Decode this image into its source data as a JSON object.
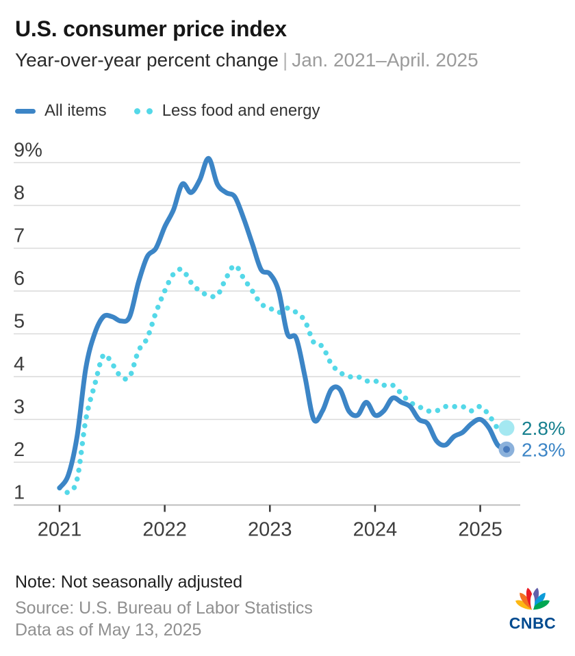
{
  "header": {
    "title": "U.S. consumer price index",
    "subtitle_main": "Year-over-year percent change",
    "subtitle_sep": "|",
    "subtitle_range": "Jan. 2021–April. 2025"
  },
  "legend": [
    {
      "label": "All items",
      "swatch": "line",
      "color": "#3C85C6"
    },
    {
      "label": "Less food and energy",
      "swatch": "dots",
      "color": "#54D8E8"
    }
  ],
  "footer": {
    "note": "Note: Not seasonally adjusted",
    "source": "Source: U.S. Bureau of Labor Statistics",
    "as_of": "Data as of May 13, 2025",
    "logo": "CNBC",
    "logo_text_color": "#014A8F",
    "logo_colors": [
      "#FDB713",
      "#F37021",
      "#EB1C24",
      "#645FAA",
      "#0D9BD8",
      "#00A651"
    ]
  },
  "colors": {
    "all_items": "#3C85C6",
    "core": "#54D8E8",
    "grid": "#D9D9D9",
    "axis": "#BDBDBD",
    "tick": "#3A3A3A",
    "tick_label": "#3D3D3D",
    "end_dot_core": "#A4E8F1",
    "end_dot_all_outer": "#8BB1DB",
    "end_dot_all_inner": "#4A7CBD",
    "end_label_core": "#17808F",
    "end_label_all": "#3C85C6"
  },
  "chart_data": {
    "type": "line",
    "title": "U.S. consumer price index",
    "xlabel": "",
    "ylabel": "Year-over-year percent change",
    "ylim": [
      1,
      9.5
    ],
    "grid": true,
    "legend_position": "top",
    "yticks": [
      {
        "label": "9%",
        "value": 9
      },
      {
        "label": "8",
        "value": 8
      },
      {
        "label": "7",
        "value": 7
      },
      {
        "label": "6",
        "value": 6
      },
      {
        "label": "5",
        "value": 5
      },
      {
        "label": "4",
        "value": 4
      },
      {
        "label": "3",
        "value": 3
      },
      {
        "label": "2",
        "value": 2
      },
      {
        "label": "1",
        "value": 1
      }
    ],
    "xticks": [
      {
        "label": "2021",
        "index": 0
      },
      {
        "label": "2022",
        "index": 12
      },
      {
        "label": "2023",
        "index": 24
      },
      {
        "label": "2024",
        "index": 36
      },
      {
        "label": "2025",
        "index": 48
      }
    ],
    "x": [
      "Jan 2021",
      "Feb 2021",
      "Mar 2021",
      "Apr 2021",
      "May 2021",
      "Jun 2021",
      "Jul 2021",
      "Aug 2021",
      "Sep 2021",
      "Oct 2021",
      "Nov 2021",
      "Dec 2021",
      "Jan 2022",
      "Feb 2022",
      "Mar 2022",
      "Apr 2022",
      "May 2022",
      "Jun 2022",
      "Jul 2022",
      "Aug 2022",
      "Sep 2022",
      "Oct 2022",
      "Nov 2022",
      "Dec 2022",
      "Jan 2023",
      "Feb 2023",
      "Mar 2023",
      "Apr 2023",
      "May 2023",
      "Jun 2023",
      "Jul 2023",
      "Aug 2023",
      "Sep 2023",
      "Oct 2023",
      "Nov 2023",
      "Dec 2023",
      "Jan 2024",
      "Feb 2024",
      "Mar 2024",
      "Apr 2024",
      "May 2024",
      "Jun 2024",
      "Jul 2024",
      "Aug 2024",
      "Sep 2024",
      "Oct 2024",
      "Nov 2024",
      "Dec 2024",
      "Jan 2025",
      "Feb 2025",
      "Mar 2025",
      "Apr 2025"
    ],
    "series": [
      {
        "name": "Less food and energy",
        "style": "dotted",
        "color": "#54D8E8",
        "end_label": "2.8%",
        "values": [
          1.4,
          1.3,
          1.6,
          3.0,
          3.8,
          4.5,
          4.3,
          4.0,
          4.0,
          4.6,
          4.9,
          5.5,
          6.0,
          6.4,
          6.5,
          6.2,
          6.0,
          5.9,
          5.9,
          6.3,
          6.6,
          6.3,
          6.0,
          5.7,
          5.6,
          5.5,
          5.6,
          5.5,
          5.3,
          4.8,
          4.7,
          4.3,
          4.1,
          4.0,
          4.0,
          3.9,
          3.9,
          3.8,
          3.8,
          3.6,
          3.4,
          3.3,
          3.2,
          3.2,
          3.3,
          3.3,
          3.3,
          3.2,
          3.3,
          3.1,
          2.8,
          2.8
        ]
      },
      {
        "name": "All items",
        "style": "solid",
        "color": "#3C85C6",
        "end_label": "2.3%",
        "values": [
          1.4,
          1.7,
          2.6,
          4.2,
          5.0,
          5.4,
          5.4,
          5.3,
          5.4,
          6.2,
          6.8,
          7.0,
          7.5,
          7.9,
          8.5,
          8.3,
          8.6,
          9.1,
          8.5,
          8.3,
          8.2,
          7.7,
          7.1,
          6.5,
          6.4,
          6.0,
          5.0,
          4.9,
          4.0,
          3.0,
          3.2,
          3.7,
          3.7,
          3.2,
          3.1,
          3.4,
          3.1,
          3.2,
          3.5,
          3.4,
          3.3,
          3.0,
          2.9,
          2.5,
          2.4,
          2.6,
          2.7,
          2.9,
          3.0,
          2.8,
          2.4,
          2.3
        ]
      }
    ]
  }
}
